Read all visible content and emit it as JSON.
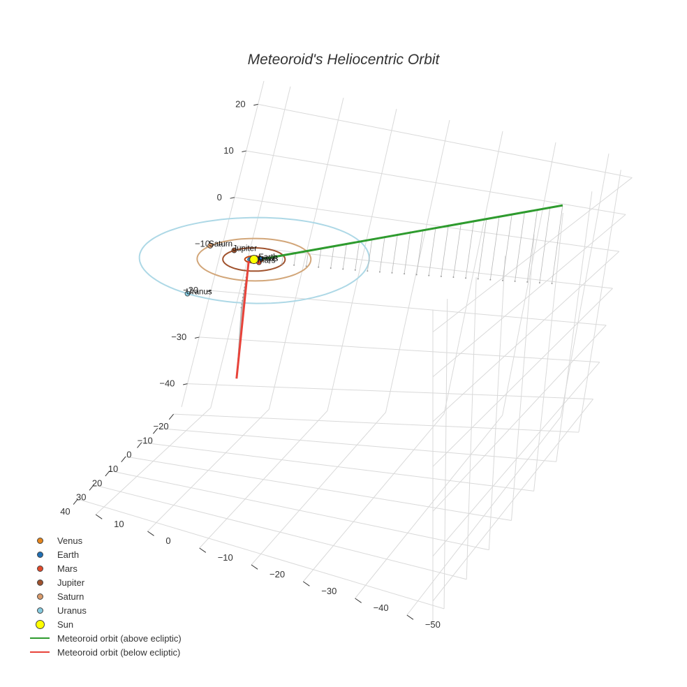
{
  "chart_data": {
    "type": "scatter3d",
    "title": "Meteoroid's Heliocentric Orbit",
    "axes": {
      "x": {
        "range": [
          -25,
          45
        ],
        "ticks": [
          -20,
          -10,
          0,
          10,
          20,
          30,
          40
        ]
      },
      "y": {
        "range": [
          -55,
          15
        ],
        "ticks": [
          -50,
          -40,
          -30,
          -20,
          -10,
          0,
          10
        ]
      },
      "z": {
        "range": [
          -45,
          25
        ],
        "ticks": [
          -40,
          -30,
          -20,
          -10,
          0,
          10,
          20
        ]
      }
    },
    "orbits": [
      {
        "name": "Venus",
        "radius": 0.72,
        "color": "#c0864a"
      },
      {
        "name": "Earth",
        "radius": 1.0,
        "color": "#1f77b4"
      },
      {
        "name": "Mars",
        "radius": 1.52,
        "color": "#c1440e"
      },
      {
        "name": "Jupiter",
        "radius": 5.2,
        "color": "#a0522d"
      },
      {
        "name": "Saturn",
        "radius": 9.5,
        "color": "#d2a679"
      },
      {
        "name": "Uranus",
        "radius": 19.2,
        "color": "#add8e6"
      }
    ],
    "planets": [
      {
        "name": "Venus",
        "x": 0.2,
        "y": -0.7,
        "z": 0,
        "color": "#e6861c",
        "label": "Venus"
      },
      {
        "name": "Earth",
        "x": -0.6,
        "y": -0.8,
        "z": 0,
        "color": "#1f6fb4",
        "label": "Earth"
      },
      {
        "name": "Mars",
        "x": 0.8,
        "y": -1.3,
        "z": 0,
        "color": "#e24a2b",
        "label": "Mars"
      },
      {
        "name": "Jupiter",
        "x": -2.3,
        "y": 4.7,
        "z": 0,
        "color": "#a0522d",
        "label": "Jupiter"
      },
      {
        "name": "Saturn",
        "x": -2.5,
        "y": 9.2,
        "z": 0,
        "color": "#d99b6c",
        "label": "Saturn"
      },
      {
        "name": "Uranus",
        "x": 18.9,
        "y": 3.5,
        "z": 0,
        "color": "#86cbe0",
        "label": "Uranus"
      }
    ],
    "sun": {
      "name": "Sun",
      "x": 0,
      "y": 0,
      "z": 0,
      "color": "#ffff00"
    },
    "meteoroid_above": {
      "name": "Meteoroid orbit (above ecliptic)",
      "color": "#2e9b2e",
      "points": [
        [
          0.8,
          -1.0,
          0.5
        ],
        [
          -10,
          -50,
          20
        ]
      ]
    },
    "meteoroid_below": {
      "name": "Meteoroid orbit (below ecliptic)",
      "color": "#e8433a",
      "points": [
        [
          1.0,
          0.5,
          0
        ],
        [
          20,
          -7,
          -17
        ]
      ]
    },
    "legend": [
      {
        "label": "Venus",
        "kind": "dot",
        "color": "#e6861c"
      },
      {
        "label": "Earth",
        "kind": "dot",
        "color": "#1f6fb4"
      },
      {
        "label": "Mars",
        "kind": "dot",
        "color": "#e24a2b"
      },
      {
        "label": "Jupiter",
        "kind": "dot",
        "color": "#a0522d"
      },
      {
        "label": "Saturn",
        "kind": "dot",
        "color": "#d99b6c"
      },
      {
        "label": "Uranus",
        "kind": "dot",
        "color": "#86cbe0"
      },
      {
        "label": "Sun",
        "kind": "bigdot",
        "color": "#ffff00"
      },
      {
        "label": "Meteoroid orbit (above ecliptic)",
        "kind": "line",
        "color": "#2e9b2e"
      },
      {
        "label": "Meteoroid orbit (below ecliptic)",
        "kind": "line",
        "color": "#e8433a"
      }
    ]
  }
}
